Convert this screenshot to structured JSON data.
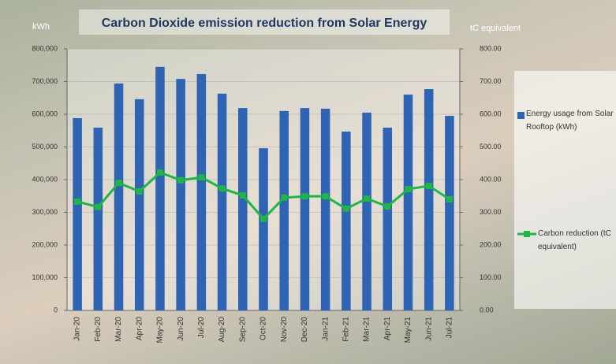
{
  "chart_data": {
    "type": "bar-line",
    "title": "Carbon Dioxide emission reduction from Solar Energy",
    "y_label": "kWh",
    "y2_label": "tC equivalent",
    "categories": [
      "Jan-20",
      "Feb-20",
      "Mar-20",
      "Apr-20",
      "May-20",
      "Jun-20",
      "Jul-20",
      "Aug-20",
      "Sep-20",
      "Oct-20",
      "Nov-20",
      "Dec-20",
      "Jan-21",
      "Feb-21",
      "Mar-21",
      "Apr-21",
      "May-21",
      "Jun-21",
      "Jul-21"
    ],
    "series": [
      {
        "name": "Energy usage from Solar Rooftop (kWh)",
        "type": "bar",
        "color": "#2f63b3",
        "values": [
          588000,
          559000,
          694000,
          646000,
          745000,
          708000,
          723000,
          663000,
          619000,
          496000,
          610000,
          619000,
          617000,
          547000,
          605000,
          559000,
          660000,
          677000,
          595000
        ]
      },
      {
        "name": "Carbon reduction (tC equivalent)",
        "type": "line",
        "axis": "y2",
        "color": "#1fb547",
        "values": [
          333,
          316,
          390,
          364,
          422,
          398,
          407,
          373,
          352,
          280,
          345,
          349,
          349,
          311,
          342,
          318,
          371,
          381,
          340
        ]
      }
    ],
    "ylim": [
      0,
      800000
    ],
    "yticks": [
      0,
      {
        "value": 100000,
        "label": "100,000"
      },
      {
        "value": 200000,
        "label": "200,000"
      },
      {
        "value": 300000,
        "label": "300,000"
      },
      {
        "value": 400000,
        "label": "400,000"
      },
      {
        "value": 500000,
        "label": "500,000"
      },
      {
        "value": 600000,
        "label": "600,000"
      },
      {
        "value": 700000,
        "label": "700,000"
      },
      {
        "value": 800000,
        "label": "800,000"
      }
    ],
    "y2lim": [
      0,
      800
    ],
    "y2ticks": [
      {
        "value": 0,
        "label": "0.00"
      },
      {
        "value": 100,
        "label": "100.00"
      },
      {
        "value": 200,
        "label": "200.00"
      },
      {
        "value": 300,
        "label": "300.00"
      },
      {
        "value": 400,
        "label": "400.00"
      },
      {
        "value": 500,
        "label": "500.00"
      },
      {
        "value": 600,
        "label": "600.00"
      },
      {
        "value": 700,
        "label": "700.00"
      },
      {
        "value": 800,
        "label": "800.00"
      }
    ],
    "grid": true
  }
}
